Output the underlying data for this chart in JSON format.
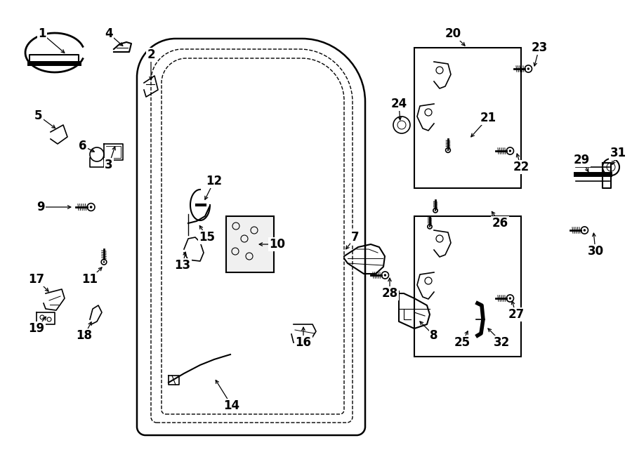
{
  "bg": "#ffffff",
  "lc": "#000000",
  "fw": 9.0,
  "fh": 6.61,
  "dpi": 100,
  "fs": 12,
  "arrow_ms": 8,
  "labels": [
    [
      "1",
      60,
      48,
      95,
      78
    ],
    [
      "2",
      215,
      78,
      215,
      118
    ],
    [
      "3",
      155,
      235,
      165,
      205
    ],
    [
      "4",
      155,
      48,
      178,
      68
    ],
    [
      "5",
      55,
      165,
      82,
      185
    ],
    [
      "6",
      118,
      208,
      138,
      218
    ],
    [
      "7",
      506,
      338,
      490,
      358
    ],
    [
      "8",
      618,
      478,
      595,
      455
    ],
    [
      "9",
      58,
      295,
      105,
      295
    ],
    [
      "10",
      395,
      348,
      365,
      348
    ],
    [
      "11",
      128,
      398,
      148,
      378
    ],
    [
      "12",
      305,
      258,
      290,
      288
    ],
    [
      "13",
      260,
      378,
      265,
      355
    ],
    [
      "14",
      330,
      578,
      305,
      538
    ],
    [
      "15",
      295,
      338,
      282,
      318
    ],
    [
      "16",
      432,
      488,
      432,
      462
    ],
    [
      "17",
      52,
      398,
      72,
      418
    ],
    [
      "18",
      120,
      478,
      132,
      455
    ],
    [
      "19",
      52,
      468,
      68,
      448
    ],
    [
      "20",
      645,
      48,
      665,
      68
    ],
    [
      "21",
      695,
      168,
      668,
      198
    ],
    [
      "22",
      742,
      238,
      735,
      215
    ],
    [
      "23",
      768,
      68,
      760,
      98
    ],
    [
      "24",
      568,
      148,
      570,
      175
    ],
    [
      "25",
      658,
      488,
      668,
      468
    ],
    [
      "26",
      712,
      318,
      698,
      298
    ],
    [
      "27",
      735,
      448,
      728,
      425
    ],
    [
      "28",
      555,
      418,
      555,
      392
    ],
    [
      "29",
      828,
      228,
      840,
      248
    ],
    [
      "30",
      848,
      358,
      845,
      328
    ],
    [
      "31",
      880,
      218,
      870,
      238
    ],
    [
      "32",
      715,
      488,
      692,
      465
    ]
  ]
}
